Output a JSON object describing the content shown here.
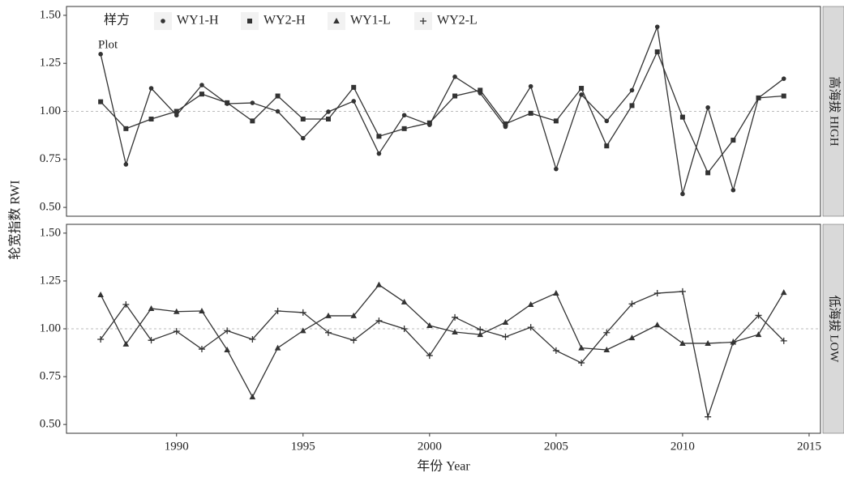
{
  "chart_data": [
    {
      "type": "line",
      "strip": "高海拔 HIGH",
      "legend_title": "样方",
      "legend_subtitle": "Plot",
      "x": [
        1987,
        1988,
        1989,
        1990,
        1991,
        1992,
        1993,
        1994,
        1995,
        1996,
        1997,
        1998,
        1999,
        2000,
        2001,
        2002,
        2003,
        2004,
        2005,
        2006,
        2007,
        2008,
        2009,
        2010,
        2011,
        2012,
        2013,
        2014
      ],
      "xlim": [
        1985.65,
        2015.45
      ],
      "ylim": [
        0.454,
        1.546
      ],
      "yticks": [
        {
          "value": 0.5,
          "label": "0.50"
        },
        0.75,
        {
          "value": 1,
          "label": "1.00"
        },
        1.25,
        {
          "value": 1.5,
          "label": "1.50"
        }
      ],
      "hline": 1,
      "series": [
        {
          "name": "WY1-H",
          "marker": "circle",
          "color": "#333333",
          "values": [
            1.298,
            0.724,
            1.12,
            0.98,
            1.137,
            1.04,
            1.044,
            1.0,
            0.86,
            0.998,
            1.053,
            0.78,
            0.98,
            0.93,
            1.18,
            1.095,
            0.92,
            1.13,
            0.7,
            1.087,
            0.95,
            1.11,
            1.44,
            0.57,
            1.02,
            0.59,
            1.07,
            1.17
          ]
        },
        {
          "name": "WY2-H",
          "marker": "square",
          "color": "#333333",
          "values": [
            1.05,
            0.91,
            0.96,
            1.0,
            1.09,
            1.045,
            0.95,
            1.08,
            0.96,
            0.96,
            1.125,
            0.87,
            0.91,
            0.94,
            1.08,
            1.11,
            0.935,
            0.99,
            0.95,
            1.12,
            0.82,
            1.03,
            1.31,
            0.97,
            0.68,
            0.85,
            1.07,
            1.08
          ]
        }
      ]
    },
    {
      "type": "line",
      "strip": "低海拔 LOW",
      "xlabel": "年份 Year",
      "ylabel": "轮宽指数 RWI",
      "x": [
        1987,
        1988,
        1989,
        1990,
        1991,
        1992,
        1993,
        1994,
        1995,
        1996,
        1997,
        1998,
        1999,
        2000,
        2001,
        2002,
        2003,
        2004,
        2005,
        2006,
        2007,
        2008,
        2009,
        2010,
        2011,
        2012,
        2013,
        2014
      ],
      "xlim": [
        1985.65,
        2015.45
      ],
      "ylim": [
        0.454,
        1.546
      ],
      "xticks": [
        1990,
        1995,
        2000,
        2005,
        2010,
        2015
      ],
      "yticks": [
        {
          "value": 0.5,
          "label": "0.50"
        },
        0.75,
        {
          "value": 1,
          "label": "1.00"
        },
        1.25,
        {
          "value": 1.5,
          "label": "1.50"
        }
      ],
      "hline": 1,
      "series": [
        {
          "name": "WY1-L",
          "marker": "triangle",
          "color": "#333333",
          "values": [
            1.178,
            0.92,
            1.106,
            1.09,
            1.093,
            0.89,
            0.644,
            0.9,
            0.99,
            1.068,
            1.068,
            1.23,
            1.14,
            1.017,
            0.983,
            0.97,
            1.034,
            1.127,
            1.186,
            0.9,
            0.89,
            0.953,
            1.02,
            0.924,
            0.924,
            0.93,
            0.97,
            1.19
          ]
        },
        {
          "name": "WY2-L",
          "marker": "plus",
          "color": "#333333",
          "values": [
            0.945,
            1.127,
            0.94,
            0.987,
            0.894,
            0.99,
            0.945,
            1.093,
            1.085,
            0.98,
            0.94,
            1.042,
            1.0,
            0.86,
            1.06,
            0.996,
            0.958,
            1.008,
            0.886,
            0.822,
            0.98,
            1.13,
            1.186,
            1.195,
            0.54,
            0.93,
            1.07,
            0.937
          ]
        }
      ]
    }
  ]
}
